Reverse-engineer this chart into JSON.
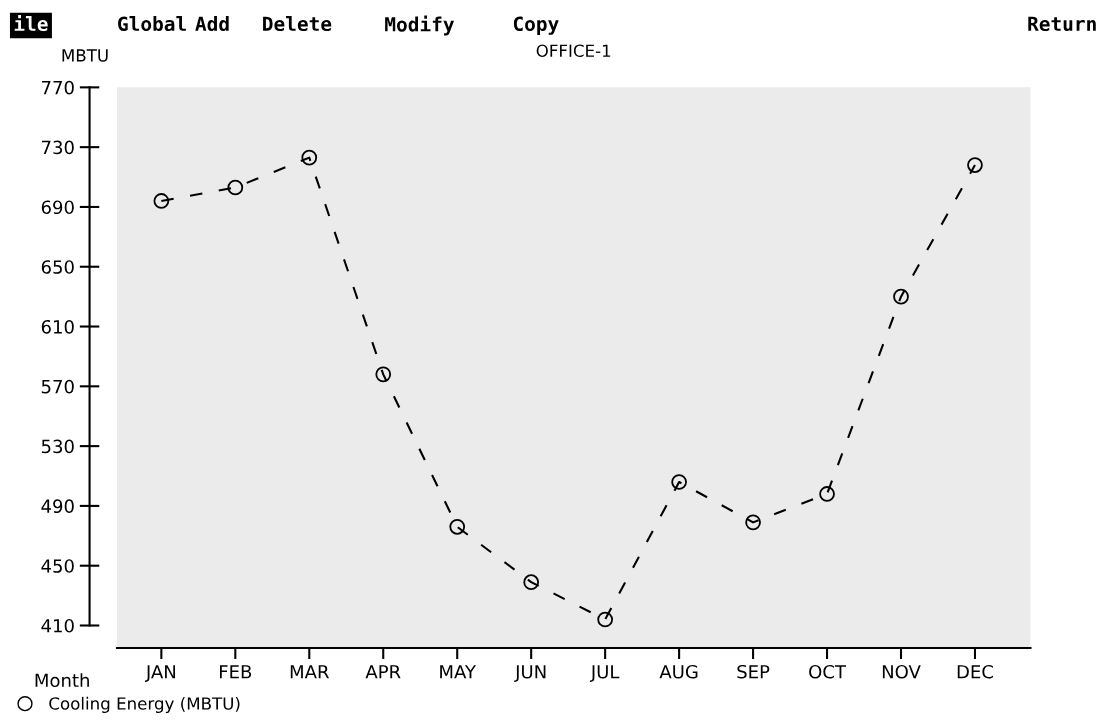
{
  "chart_data": {
    "type": "line",
    "title": "OFFICE-1",
    "ylabel": "MBTU",
    "xlabel": "Month",
    "categories": [
      "JAN",
      "FEB",
      "MAR",
      "APR",
      "MAY",
      "JUN",
      "JUL",
      "AUG",
      "SEP",
      "OCT",
      "NOV",
      "DEC"
    ],
    "series": [
      {
        "name": "Cooling Energy (MBTU)",
        "color": "#000000",
        "values": [
          694,
          703,
          723,
          578,
          476,
          439,
          414,
          506,
          479,
          498,
          630,
          718
        ]
      }
    ],
    "ylim": [
      395,
      770
    ],
    "yticks": [
      410,
      450,
      490,
      530,
      570,
      610,
      650,
      690,
      730,
      770
    ],
    "marker": "circle",
    "line_style": "dashed",
    "grid": false,
    "legend": "bottom left",
    "annotations": [
      "ile",
      "Global",
      "Add",
      "Delete",
      "Modify",
      "Copy",
      "Return"
    ]
  }
}
